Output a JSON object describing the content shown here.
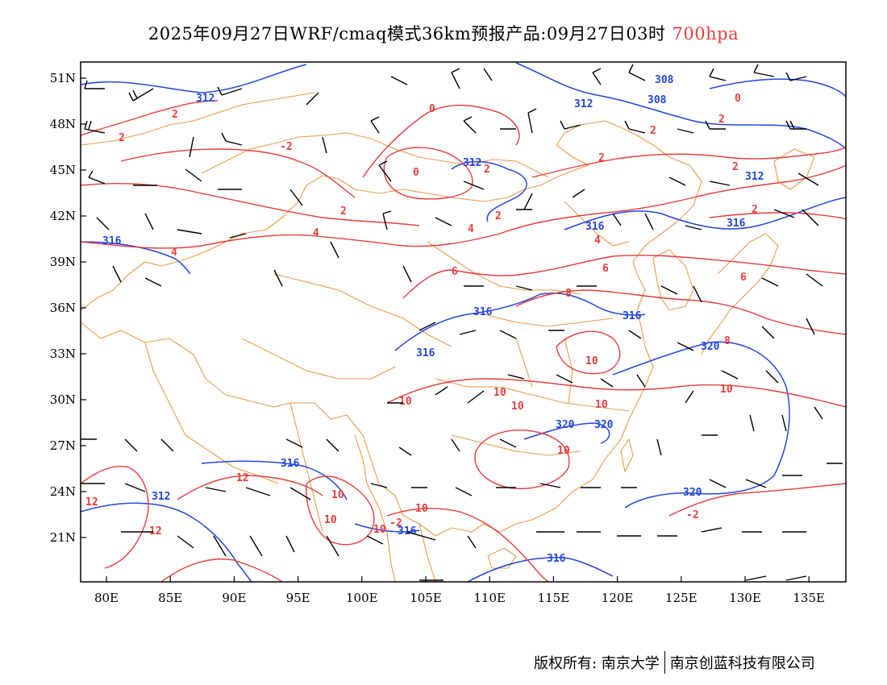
{
  "title": {
    "main": "2025年09月27日WRF/cmaq模式36km预报产品:09月27日03时",
    "level": "700hpa"
  },
  "axes": {
    "x_ticks": [
      "80E",
      "85E",
      "90E",
      "95E",
      "100E",
      "105E",
      "110E",
      "115E",
      "120E",
      "125E",
      "130E",
      "135E"
    ],
    "y_ticks": [
      "51N",
      "48N",
      "45N",
      "42N",
      "39N",
      "36N",
      "33N",
      "30N",
      "27N",
      "24N",
      "21N"
    ]
  },
  "colors": {
    "temperature": "#e83c3c",
    "geopotential": "#2346e0",
    "border": "#e89b4a",
    "wind": "#000000"
  },
  "temperature_labels": [
    "0",
    "2",
    "2",
    "0",
    "-2",
    "2",
    "2",
    "4",
    "2",
    "4",
    "2",
    "0",
    "2",
    "2",
    "2",
    "4",
    "4",
    "6",
    "6",
    "6",
    "8",
    "8",
    "10",
    "10",
    "10",
    "10",
    "10",
    "10",
    "10",
    "12",
    "12",
    "12",
    "10",
    "10",
    "10",
    "10",
    "-2",
    "-2",
    "2"
  ],
  "height_labels": [
    "312",
    "316",
    "312",
    "312",
    "308",
    "308",
    "316",
    "316",
    "316",
    "316",
    "316",
    "320",
    "320",
    "320",
    "316",
    "312",
    "312",
    "320",
    "316",
    "316"
  ],
  "footer": {
    "copyright": "版权所有: 南京大学",
    "company": "南京创蓝科技有限公司"
  }
}
